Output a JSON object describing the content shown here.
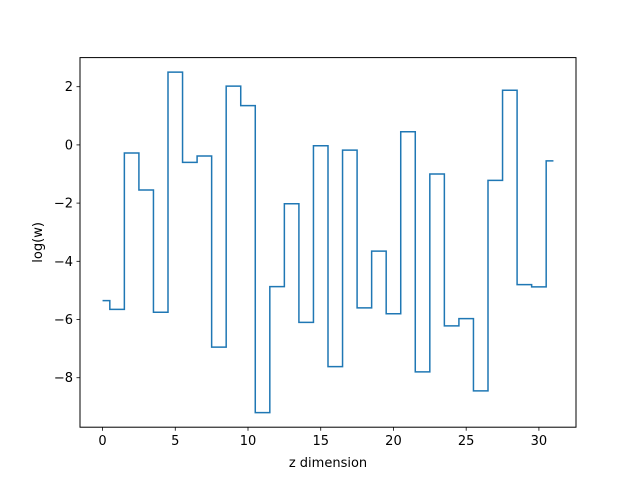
{
  "chart_data": {
    "type": "line",
    "drawstyle": "steps-mid",
    "title": "",
    "xlabel": "z dimension",
    "ylabel": "log(w)",
    "xlim": [
      -1.55,
      32.55
    ],
    "ylim": [
      -9.7,
      3.0
    ],
    "xticks": [
      0,
      5,
      10,
      15,
      20,
      25,
      30
    ],
    "yticks": [
      -8,
      -6,
      -4,
      -2,
      0,
      2
    ],
    "grid": false,
    "legend": "none",
    "series": [
      {
        "color": "#1f77b4",
        "x": [
          0,
          1,
          2,
          3,
          4,
          5,
          6,
          7,
          8,
          9,
          10,
          11,
          12,
          13,
          14,
          15,
          16,
          17,
          18,
          19,
          20,
          21,
          22,
          23,
          24,
          25,
          26,
          27,
          28,
          29,
          30,
          31
        ],
        "values": [
          -5.35,
          -5.65,
          -0.28,
          -1.55,
          -5.75,
          2.5,
          -0.6,
          -0.38,
          -6.95,
          2.02,
          1.35,
          -9.2,
          -4.87,
          -2.02,
          -6.1,
          -0.03,
          -7.62,
          -0.18,
          -5.6,
          -3.65,
          -5.8,
          0.45,
          -7.8,
          -1.0,
          -6.22,
          -5.97,
          -8.45,
          -1.22,
          1.88,
          -4.8,
          -4.88,
          -0.55
        ]
      }
    ]
  }
}
